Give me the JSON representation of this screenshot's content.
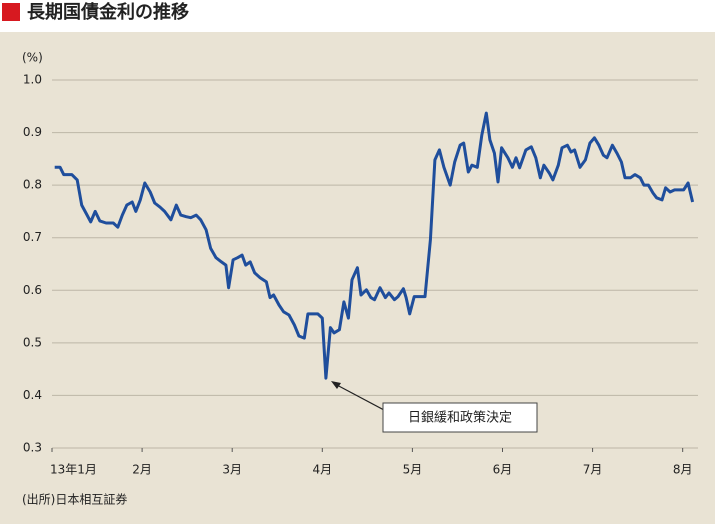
{
  "chart_data": {
    "type": "line",
    "title": "長期国債金利の推移",
    "y_label": "(%)",
    "source": "(出所)日本相互証券",
    "annotation": "日銀緩和政策決定",
    "xlim": [
      1,
      8.17
    ],
    "ylim": [
      0.3,
      1.0
    ],
    "xticks": [
      {
        "value": 1,
        "label": "13年1月"
      },
      {
        "value": 2,
        "label": "2月"
      },
      {
        "value": 3,
        "label": "3月"
      },
      {
        "value": 4,
        "label": "4月"
      },
      {
        "value": 5,
        "label": "5月"
      },
      {
        "value": 6,
        "label": "6月"
      },
      {
        "value": 7,
        "label": "7月"
      },
      {
        "value": 8,
        "label": "8月"
      }
    ],
    "yticks": [
      {
        "value": 1.0,
        "label": "1.0"
      },
      0.9,
      0.8,
      0.7,
      0.6,
      0.5,
      0.4,
      0.3
    ],
    "grid": true,
    "series": [
      {
        "color": "#1f4e9c",
        "x": [
          1.03,
          1.09,
          1.13,
          1.22,
          1.28,
          1.33,
          1.39,
          1.43,
          1.48,
          1.53,
          1.6,
          1.68,
          1.73,
          1.78,
          1.83,
          1.89,
          1.93,
          1.98,
          2.03,
          2.09,
          2.14,
          2.2,
          2.25,
          2.32,
          2.38,
          2.43,
          2.49,
          2.54,
          2.6,
          2.65,
          2.71,
          2.76,
          2.82,
          2.88,
          2.93,
          2.96,
          3.01,
          3.06,
          3.11,
          3.15,
          3.2,
          3.25,
          3.31,
          3.38,
          3.42,
          3.46,
          3.52,
          3.57,
          3.63,
          3.69,
          3.74,
          3.8,
          3.84,
          3.9,
          3.95,
          4.0,
          4.04,
          4.09,
          4.13,
          4.19,
          4.24,
          4.29,
          4.33,
          4.39,
          4.43,
          4.49,
          4.54,
          4.58,
          4.64,
          4.7,
          4.74,
          4.8,
          4.84,
          4.9,
          4.93,
          4.97,
          5.02,
          5.08,
          5.14,
          5.2,
          5.25,
          5.3,
          5.35,
          5.42,
          5.47,
          5.53,
          5.57,
          5.62,
          5.66,
          5.72,
          5.77,
          5.82,
          5.86,
          5.91,
          5.95,
          5.99,
          6.06,
          6.11,
          6.15,
          6.19,
          6.26,
          6.32,
          6.37,
          6.42,
          6.46,
          6.52,
          6.56,
          6.62,
          6.66,
          6.72,
          6.76,
          6.8,
          6.86,
          6.92,
          6.97,
          7.02,
          7.07,
          7.12,
          7.16,
          7.22,
          7.27,
          7.32,
          7.36,
          7.42,
          7.47,
          7.53,
          7.57,
          7.62,
          7.67,
          7.71,
          7.77,
          7.81,
          7.86,
          7.91,
          7.97,
          8.01,
          8.06,
          8.11
        ],
        "values": [
          0.834,
          0.834,
          0.82,
          0.82,
          0.81,
          0.762,
          0.743,
          0.73,
          0.75,
          0.732,
          0.728,
          0.728,
          0.72,
          0.743,
          0.762,
          0.768,
          0.75,
          0.772,
          0.804,
          0.787,
          0.766,
          0.758,
          0.75,
          0.734,
          0.762,
          0.743,
          0.74,
          0.738,
          0.743,
          0.734,
          0.715,
          0.68,
          0.662,
          0.654,
          0.648,
          0.605,
          0.658,
          0.662,
          0.667,
          0.648,
          0.654,
          0.633,
          0.624,
          0.616,
          0.586,
          0.591,
          0.572,
          0.559,
          0.553,
          0.534,
          0.513,
          0.509,
          0.555,
          0.555,
          0.555,
          0.547,
          0.433,
          0.529,
          0.519,
          0.525,
          0.578,
          0.547,
          0.62,
          0.643,
          0.591,
          0.601,
          0.586,
          0.582,
          0.605,
          0.586,
          0.595,
          0.582,
          0.588,
          0.603,
          0.586,
          0.555,
          0.588,
          0.588,
          0.588,
          0.696,
          0.848,
          0.867,
          0.834,
          0.8,
          0.844,
          0.876,
          0.88,
          0.825,
          0.838,
          0.834,
          0.895,
          0.937,
          0.886,
          0.861,
          0.806,
          0.871,
          0.852,
          0.834,
          0.852,
          0.833,
          0.867,
          0.873,
          0.852,
          0.814,
          0.838,
          0.823,
          0.81,
          0.838,
          0.871,
          0.876,
          0.863,
          0.867,
          0.834,
          0.848,
          0.88,
          0.89,
          0.876,
          0.857,
          0.852,
          0.876,
          0.861,
          0.844,
          0.814,
          0.814,
          0.82,
          0.814,
          0.8,
          0.8,
          0.785,
          0.776,
          0.772,
          0.795,
          0.787,
          0.791,
          0.791,
          0.791,
          0.804,
          0.768
        ]
      }
    ]
  }
}
